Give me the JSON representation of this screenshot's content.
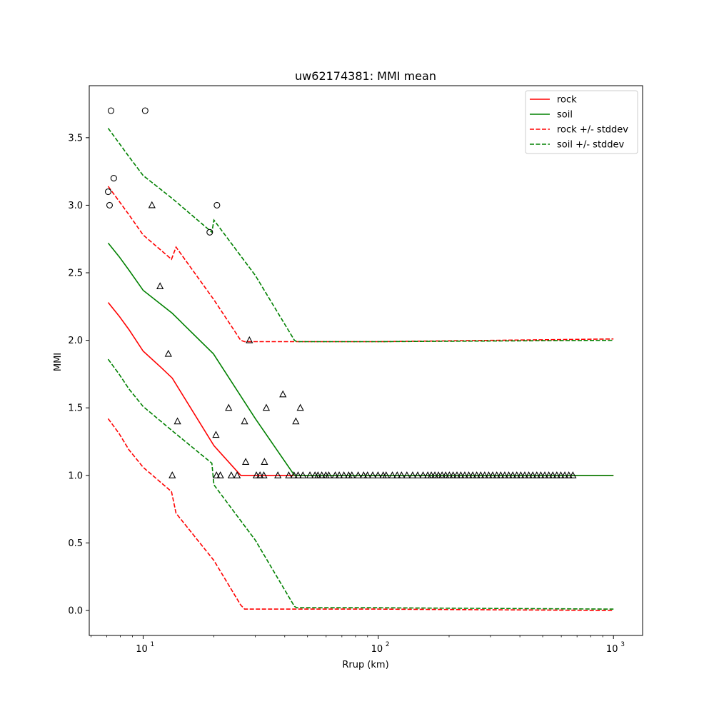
{
  "chart_data": {
    "type": "line",
    "title": "uw62174381: MMI mean",
    "xlabel": "Rrup (km)",
    "ylabel": "MMI",
    "xscale": "log",
    "xlim": [
      5.9,
      1330
    ],
    "ylim": [
      -0.185,
      3.885
    ],
    "xticks": [
      {
        "value": 10,
        "base": "10",
        "exp": "1"
      },
      {
        "value": 100,
        "base": "10",
        "exp": "2"
      },
      {
        "value": 1000,
        "base": "10",
        "exp": "3"
      }
    ],
    "yticks": [
      {
        "value": 0.0,
        "label": "0.0"
      },
      {
        "value": 0.5,
        "label": "0.5"
      },
      {
        "value": 1.0,
        "label": "1.0"
      },
      {
        "value": 1.5,
        "label": "1.5"
      },
      {
        "value": 2.0,
        "label": "2.0"
      },
      {
        "value": 2.5,
        "label": "2.5"
      },
      {
        "value": 3.0,
        "label": "3.0"
      },
      {
        "value": 3.5,
        "label": "3.5"
      }
    ],
    "grid": false,
    "legend_position": "top-right",
    "series": [
      {
        "name": "rock",
        "color": "#ff0000",
        "style": "solid",
        "x": [
          7.1,
          7.9,
          8.7,
          10.0,
          11.9,
          13.3,
          20.0,
          26.0,
          28,
          50,
          1000
        ],
        "y": [
          2.28,
          2.18,
          2.08,
          1.92,
          1.8,
          1.72,
          1.22,
          1.0,
          1.0,
          1.0,
          1.0
        ]
      },
      {
        "name": "soil",
        "color": "#008000",
        "style": "solid",
        "x": [
          7.1,
          7.9,
          8.7,
          10.0,
          13.3,
          19.9,
          30.0,
          44.0,
          45,
          1000
        ],
        "y": [
          2.72,
          2.62,
          2.52,
          2.37,
          2.2,
          1.9,
          1.42,
          1.0,
          1.0,
          1.0
        ]
      },
      {
        "name": "rock +/- stddev",
        "color": "#ff0000",
        "style": "dashed",
        "x": [
          7.1,
          7.9,
          8.7,
          10.0,
          13.2,
          13.8,
          20.0,
          26.0,
          27.0,
          100,
          1000
        ],
        "y": [
          3.14,
          3.03,
          2.93,
          2.78,
          2.6,
          2.69,
          2.3,
          2.0,
          1.99,
          1.99,
          2.01
        ]
      },
      {
        "name": "rock +/- stddev lower",
        "color": "#ff0000",
        "style": "dashed",
        "x": [
          7.1,
          7.9,
          8.7,
          10.0,
          13.2,
          13.8,
          20.0,
          26.0,
          27.0,
          100,
          1000
        ],
        "y": [
          1.42,
          1.31,
          1.19,
          1.06,
          0.88,
          0.72,
          0.37,
          0.04,
          0.01,
          0.01,
          0.0
        ]
      },
      {
        "name": "soil +/- stddev",
        "color": "#008000",
        "style": "dashed",
        "x": [
          7.1,
          7.9,
          8.7,
          10.0,
          13.3,
          19.6,
          20.0,
          30.0,
          44.0,
          45.0,
          100,
          1000
        ],
        "y": [
          3.57,
          3.46,
          3.36,
          3.22,
          3.05,
          2.8,
          2.89,
          2.48,
          2.0,
          1.99,
          1.99,
          2.0
        ]
      },
      {
        "name": "soil +/- stddev lower",
        "color": "#008000",
        "style": "dashed",
        "x": [
          7.1,
          7.9,
          8.7,
          10.0,
          13.3,
          19.6,
          20.0,
          30.0,
          44.0,
          45.0,
          100,
          1000
        ],
        "y": [
          1.86,
          1.75,
          1.64,
          1.51,
          1.33,
          1.09,
          0.93,
          0.52,
          0.03,
          0.02,
          0.02,
          0.01
        ]
      }
    ],
    "legend": [
      {
        "label": "rock",
        "color": "#ff0000",
        "style": "solid"
      },
      {
        "label": "soil",
        "color": "#008000",
        "style": "solid"
      },
      {
        "label": "rock +/- stddev",
        "color": "#ff0000",
        "style": "dashed"
      },
      {
        "label": "soil +/- stddev",
        "color": "#008000",
        "style": "dashed"
      }
    ],
    "circle_points": {
      "x": [
        7.1,
        7.3,
        7.2,
        7.5,
        10.2,
        19.2,
        20.6
      ],
      "y": [
        3.1,
        3.7,
        3.0,
        3.2,
        3.7,
        2.8,
        3.0
      ]
    },
    "triangle_points": {
      "x": [
        10.9,
        11.8,
        12.8,
        13.3,
        14.0,
        20.4,
        20.5,
        21.3,
        23.1,
        23.7,
        25.1,
        27.0,
        27.3,
        28.3,
        30.3,
        31.4,
        32.6,
        32.8,
        33.4,
        37.4,
        39.3,
        41.6,
        43.8,
        44.6,
        45.6,
        46.6,
        47.8,
        51.2,
        53.8,
        55.4,
        57.5,
        59.8,
        61.6,
        65.6,
        68.2,
        71.4,
        74.8,
        77.2,
        82.1,
        86.6,
        90.0,
        94.7,
        99.7,
        104.9,
        108.0,
        114.8,
        120.3,
        125.5,
        132.3,
        140.0,
        147.1,
        155.0,
        162.3,
        168.0,
        174.0,
        180.2,
        186.7,
        193.4,
        200.5,
        208.0,
        216.0,
        224.3,
        233.2,
        242.5,
        252.1,
        262.1,
        272.6,
        283.4,
        294.8,
        306.5,
        318.9,
        331.6,
        344.9,
        358.7,
        373.1,
        388.0,
        403.5,
        419.6,
        436.4,
        453.8,
        472.0,
        490.9,
        510.5,
        530.9,
        552.1,
        574.2,
        597.2,
        621.1,
        645.9,
        672.0
      ],
      "y": [
        3.0,
        2.4,
        1.9,
        1.0,
        1.4,
        1.3,
        1.0,
        1.0,
        1.5,
        1.0,
        1.0,
        1.4,
        1.1,
        2.0,
        1.0,
        1.0,
        1.0,
        1.1,
        1.5,
        1.0,
        1.6,
        1.0,
        1.0,
        1.4,
        1.0,
        1.5,
        1.0,
        1.0,
        1.0,
        1.0,
        1.0,
        1.0,
        1.0,
        1.0,
        1.0,
        1.0,
        1.0,
        1.0,
        1.0,
        1.0,
        1.0,
        1.0,
        1.0,
        1.0,
        1.0,
        1.0,
        1.0,
        1.0,
        1.0,
        1.0,
        1.0,
        1.0,
        1.0,
        1.0,
        1.0,
        1.0,
        1.0,
        1.0,
        1.0,
        1.0,
        1.0,
        1.0,
        1.0,
        1.0,
        1.0,
        1.0,
        1.0,
        1.0,
        1.0,
        1.0,
        1.0,
        1.0,
        1.0,
        1.0,
        1.0,
        1.0,
        1.0,
        1.0,
        1.0,
        1.0,
        1.0,
        1.0,
        1.0,
        1.0,
        1.0,
        1.0,
        1.0,
        1.0,
        1.0,
        1.0
      ]
    }
  }
}
